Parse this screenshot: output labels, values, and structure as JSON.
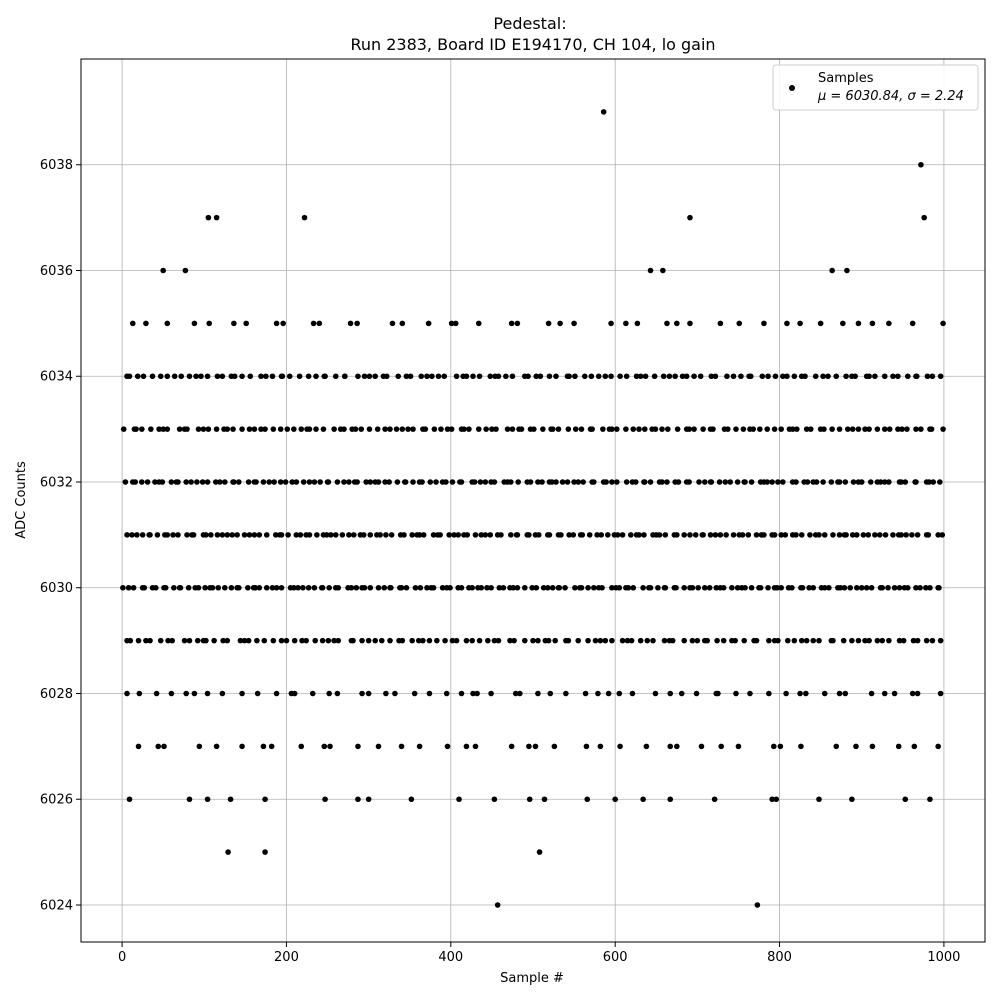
{
  "chart_data": {
    "type": "scatter",
    "title_line1": "Pedestal:",
    "title_line2": "Run 2383, Board ID E194170, CH 104, lo gain",
    "xlabel": "Sample #",
    "ylabel": "ADC Counts",
    "xlim": [
      -50,
      1050
    ],
    "ylim": [
      6023.3,
      6040.0
    ],
    "xticks": [
      0,
      200,
      400,
      600,
      800,
      1000
    ],
    "yticks": [
      6024,
      6026,
      6028,
      6030,
      6032,
      6034,
      6036,
      6038
    ],
    "grid": true,
    "legend_position": "top-right",
    "series": [
      {
        "name": "Samples",
        "stats_label": "μ = 6030.84, σ = 2.24",
        "color": "#000000",
        "outliers": [
          [
            586,
            6039
          ],
          [
            972,
            6038
          ],
          [
            105,
            6037
          ],
          [
            115,
            6037
          ],
          [
            222,
            6037
          ],
          [
            691,
            6037
          ],
          [
            976,
            6037
          ],
          [
            50,
            6036
          ],
          [
            77,
            6036
          ],
          [
            643,
            6036
          ],
          [
            658,
            6036
          ],
          [
            864,
            6036
          ],
          [
            882,
            6036
          ],
          [
            129,
            6025
          ],
          [
            174,
            6025
          ],
          [
            508,
            6025
          ],
          [
            457,
            6024
          ],
          [
            773,
            6024
          ]
        ],
        "levels": [
          [
            6035,
            42
          ],
          [
            6034,
            118
          ],
          [
            6033,
            128
          ],
          [
            6032,
            148
          ],
          [
            6031,
            150
          ],
          [
            6030,
            156
          ],
          [
            6029,
            118
          ],
          [
            6028,
            58
          ],
          [
            6027,
            40
          ],
          [
            6026,
            24
          ]
        ]
      }
    ]
  }
}
